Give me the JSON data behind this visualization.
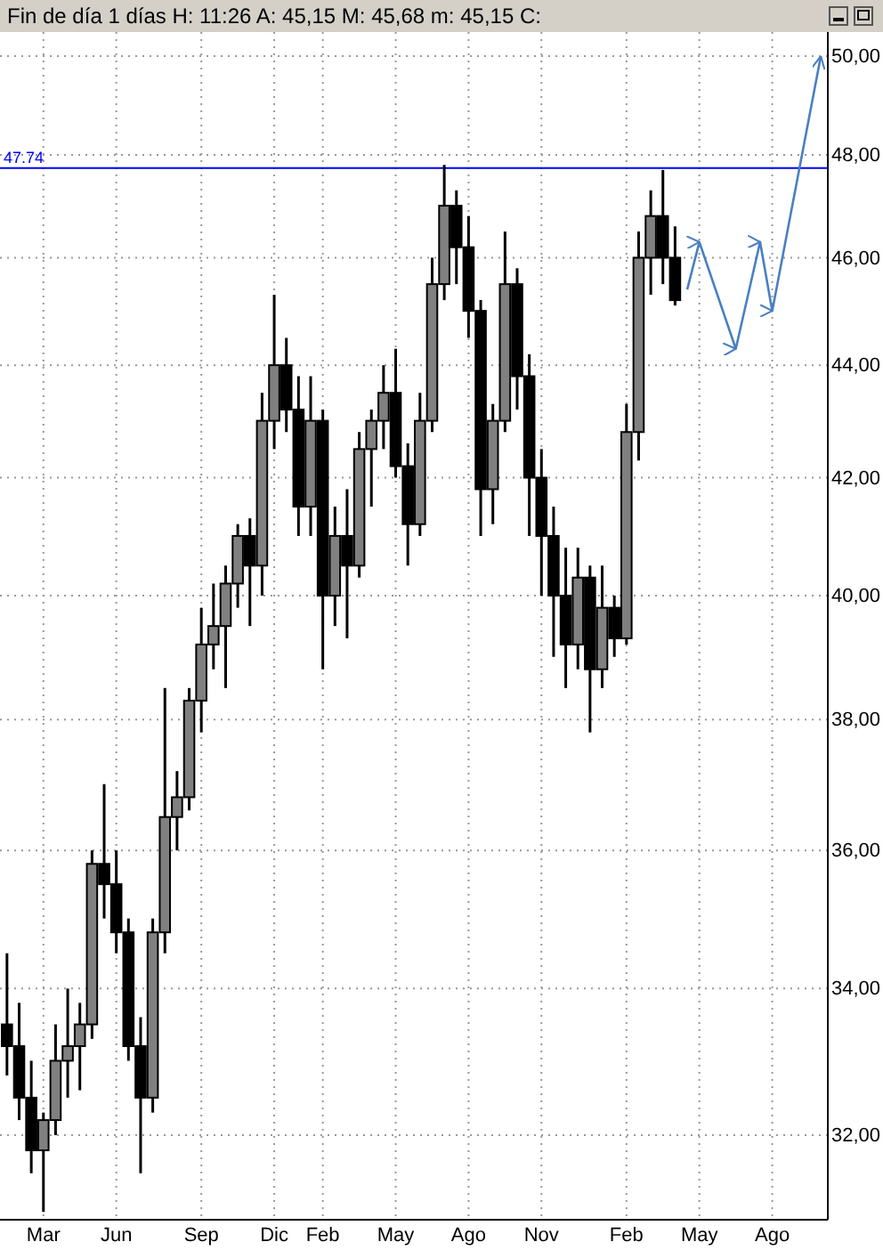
{
  "chart_data": {
    "type": "candlestick",
    "title": "Fin de día 1 días H: 11:26 A: 45,15 M: 45,68 m: 45,15 C:",
    "categories": [
      null,
      null,
      null,
      "Mar",
      null,
      null,
      null,
      null,
      null,
      "Jun",
      null,
      null,
      null,
      null,
      null,
      null,
      "Sep",
      null,
      null,
      null,
      null,
      null,
      "Dic",
      null,
      null,
      null,
      "Feb",
      null,
      null,
      null,
      null,
      null,
      "May",
      null,
      null,
      null,
      null,
      null,
      "Ago",
      null,
      null,
      null,
      null,
      null,
      "Nov",
      null,
      null,
      null,
      null,
      null,
      null,
      "Feb",
      null,
      null,
      null,
      null,
      null,
      "May",
      null,
      null,
      null,
      null,
      null,
      "Ago",
      null,
      null,
      null,
      null
    ],
    "ohlc": [
      [
        33.5,
        34.5,
        32.8,
        33.2
      ],
      [
        33.2,
        33.8,
        32.2,
        32.5
      ],
      [
        32.5,
        33,
        31.5,
        31.8
      ],
      [
        31.8,
        32.3,
        31,
        32.2
      ],
      [
        32.2,
        33.5,
        32,
        33
      ],
      [
        33,
        34,
        32.5,
        33.2
      ],
      [
        33.2,
        33.8,
        32.6,
        33.5
      ],
      [
        33.5,
        36,
        33.3,
        35.8
      ],
      [
        35.8,
        37,
        35,
        35.5
      ],
      [
        35.5,
        36,
        34.5,
        34.8
      ],
      [
        34.8,
        35,
        33,
        33.2
      ],
      [
        33.2,
        33.6,
        31.5,
        32.5
      ],
      [
        32.5,
        35,
        32.3,
        34.8
      ],
      [
        34.8,
        38.5,
        34.5,
        36.5
      ],
      [
        36.5,
        37.2,
        36,
        36.8
      ],
      [
        36.8,
        38.5,
        36.6,
        38.3
      ],
      [
        38.3,
        39.8,
        37.8,
        39.2
      ],
      [
        39.2,
        40.2,
        38.8,
        39.5
      ],
      [
        39.5,
        40.5,
        38.5,
        40.2
      ],
      [
        40.2,
        41.2,
        39.8,
        41
      ],
      [
        41,
        41.3,
        39.5,
        40.5
      ],
      [
        40.5,
        43.5,
        40,
        43
      ],
      [
        43,
        45.3,
        42.5,
        44
      ],
      [
        44,
        44.5,
        42.8,
        43.2
      ],
      [
        43.2,
        43.8,
        41,
        41.5
      ],
      [
        41.5,
        43.8,
        41,
        43
      ],
      [
        43,
        43.2,
        38.8,
        40
      ],
      [
        40,
        41.5,
        39.5,
        41
      ],
      [
        41,
        41.8,
        39.3,
        40.5
      ],
      [
        40.5,
        42.8,
        40.3,
        42.5
      ],
      [
        42.5,
        43.2,
        41.5,
        43
      ],
      [
        43,
        44,
        42.5,
        43.5
      ],
      [
        43.5,
        44.3,
        42,
        42.2
      ],
      [
        42.2,
        42.6,
        40.5,
        41.2
      ],
      [
        41.2,
        43.5,
        41,
        43
      ],
      [
        43,
        46,
        42.8,
        45.5
      ],
      [
        45.5,
        47.8,
        45.2,
        47
      ],
      [
        47,
        47.3,
        45.5,
        46.2
      ],
      [
        46.2,
        46.8,
        44.5,
        45
      ],
      [
        45,
        45.2,
        41,
        41.8
      ],
      [
        41.8,
        43.3,
        41.2,
        43
      ],
      [
        43,
        46.5,
        42.8,
        45.5
      ],
      [
        45.5,
        45.8,
        43.2,
        43.8
      ],
      [
        43.8,
        44.2,
        41,
        42
      ],
      [
        42,
        42.5,
        40,
        41
      ],
      [
        41,
        41.5,
        39,
        40
      ],
      [
        40,
        40.8,
        38.5,
        39.2
      ],
      [
        39.2,
        40.8,
        38.8,
        40.3
      ],
      [
        40.3,
        40.5,
        37.8,
        38.8
      ],
      [
        38.8,
        40.5,
        38.5,
        39.8
      ],
      [
        39.8,
        40,
        39,
        39.3
      ],
      [
        39.3,
        43.3,
        39.2,
        42.8
      ],
      [
        42.8,
        46.5,
        42.3,
        46
      ],
      [
        46,
        47.3,
        45.3,
        46.8
      ],
      [
        46.8,
        47.7,
        45.5,
        46
      ],
      [
        46,
        46.6,
        45.1,
        45.2
      ],
      null,
      null,
      null,
      null,
      null,
      null,
      null,
      null,
      null,
      null,
      null,
      null
    ],
    "series": [
      {
        "type": "line",
        "color": "#4a7fc1",
        "values": [
          null,
          null,
          null,
          null,
          null,
          null,
          null,
          null,
          null,
          null,
          null,
          null,
          null,
          null,
          null,
          null,
          null,
          null,
          null,
          null,
          null,
          null,
          null,
          null,
          null,
          null,
          null,
          null,
          null,
          null,
          null,
          null,
          null,
          null,
          null,
          null,
          null,
          null,
          null,
          null,
          null,
          null,
          null,
          null,
          null,
          null,
          null,
          null,
          null,
          null,
          null,
          null,
          null,
          null,
          null,
          null,
          45.4,
          46.3,
          null,
          null,
          44.3,
          null,
          46.3,
          45.0,
          null,
          null,
          null,
          50.0
        ]
      }
    ],
    "ylim": [
      30.9,
      50.5
    ],
    "log": true,
    "grid": true,
    "yticks": [
      {
        "value": 32,
        "label": "32,00"
      },
      {
        "value": 34,
        "label": "34,00"
      },
      {
        "value": 36,
        "label": "36,00"
      },
      {
        "value": 38,
        "label": "38,00"
      },
      {
        "value": 40,
        "label": "40,00"
      },
      {
        "value": 42,
        "label": "42,00"
      },
      {
        "value": 44,
        "label": "44,00"
      },
      {
        "value": 46,
        "label": "46,00"
      },
      {
        "value": 48,
        "label": "48,00"
      },
      {
        "value": 50,
        "label": "50,00"
      }
    ],
    "ref_lines": [
      {
        "axis": "y",
        "value": 47.74,
        "label": "47.74",
        "color": "#0000ff"
      }
    ]
  }
}
